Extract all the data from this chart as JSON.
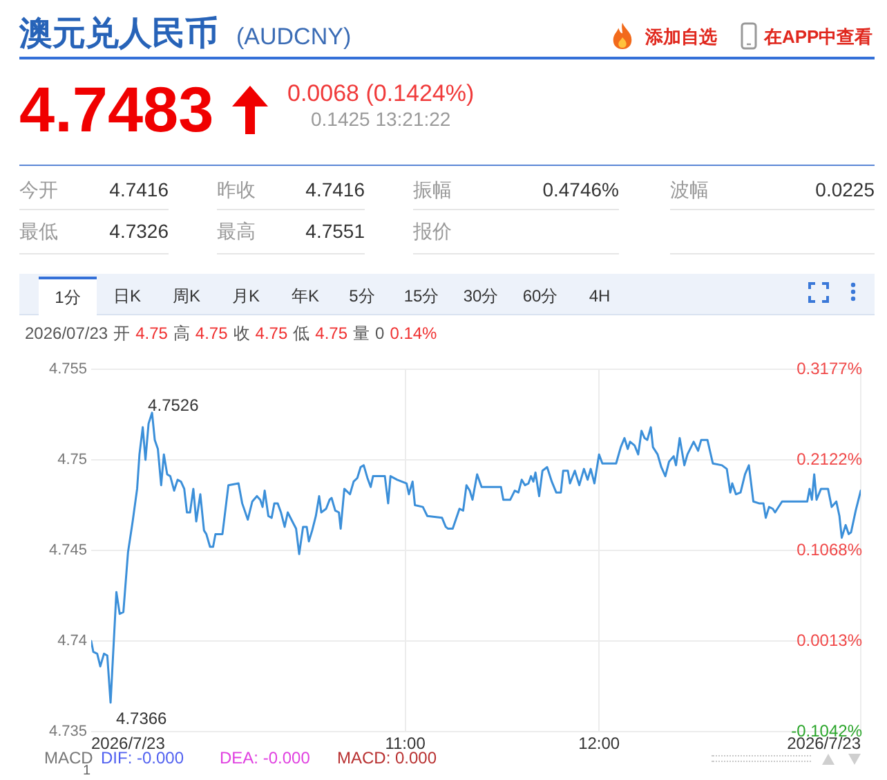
{
  "chart_data": [
    {
      "type": "other",
      "title": "澳元兑人民币",
      "subtitle": "(AUDCNY)",
      "annotations": [
        "添加自选",
        "在APP中查看",
        "4.7483",
        "0.0068 (0.1424%)",
        "0.1425 13:21:22",
        "今开",
        "4.7416",
        "昨收",
        "4.7416",
        "振幅",
        "0.4746%",
        "波幅",
        "0.0225",
        "最低",
        "4.7326",
        "最高",
        "4.7551",
        "报价"
      ]
    },
    {
      "type": "line",
      "color": "#3b8fd9",
      "x": [
        9.38,
        9.391,
        9.411,
        9.427,
        9.446,
        9.463,
        9.48,
        9.51,
        9.527,
        9.546,
        9.57,
        9.594,
        9.617,
        9.629,
        9.646,
        9.66,
        9.676,
        9.694,
        9.708,
        9.724,
        9.741,
        9.755,
        9.772,
        9.788,
        9.808,
        9.826,
        9.843,
        9.86,
        9.874,
        9.89,
        9.907,
        9.922,
        9.943,
        9.962,
        9.974,
        9.993,
        10.009,
        10.021,
        10.057,
        10.088,
        10.14,
        10.159,
        10.188,
        10.211,
        10.235,
        10.252,
        10.264,
        10.275,
        10.294,
        10.311,
        10.325,
        10.342,
        10.359,
        10.378,
        10.394,
        10.413,
        10.437,
        10.453,
        10.473,
        10.492,
        10.503,
        10.52,
        10.539,
        10.556,
        10.567,
        10.592,
        10.61,
        10.62,
        10.639,
        10.658,
        10.667,
        10.686,
        10.715,
        10.734,
        10.753,
        10.77,
        10.786,
        10.805,
        10.822,
        10.834,
        10.895,
        10.912,
        10.924,
        10.959,
        11.007,
        11.019,
        11.038,
        11.05,
        11.091,
        11.114,
        11.19,
        11.209,
        11.221,
        11.245,
        11.28,
        11.299,
        11.316,
        11.333,
        11.347,
        11.371,
        11.394,
        11.494,
        11.506,
        11.542,
        11.565,
        11.584,
        11.601,
        11.618,
        11.636,
        11.649,
        11.661,
        11.672,
        11.691,
        11.708,
        11.732,
        11.756,
        11.779,
        11.803,
        11.815,
        11.839,
        11.85,
        11.875,
        11.898,
        11.922,
        11.941,
        11.957,
        11.976,
        12,
        12.017,
        12.088,
        12.112,
        12.131,
        12.148,
        12.16,
        12.183,
        12.202,
        12.219,
        12.235,
        12.249,
        12.267,
        12.278,
        12.302,
        12.321,
        12.342,
        12.361,
        12.385,
        12.397,
        12.416,
        12.44,
        12.456,
        12.488,
        12.511,
        12.527,
        12.559,
        12.587,
        12.634,
        12.659,
        12.677,
        12.687,
        12.706,
        12.73,
        12.753,
        12.773,
        12.796,
        12.825,
        12.848,
        12.86,
        12.877,
        12.896,
        12.908,
        12.944,
        13.074,
        13.086,
        13.098,
        13.11,
        13.122,
        13.145,
        13.181,
        13.2,
        13.224,
        13.24,
        13.252,
        13.272,
        13.288,
        13.3,
        13.324,
        13.35
      ],
      "values": [
        4.74,
        4.7394,
        4.7393,
        4.7386,
        4.7393,
        4.7392,
        4.7366,
        4.7427,
        4.7415,
        4.7416,
        4.7449,
        4.7466,
        4.7484,
        4.7503,
        4.7518,
        4.75,
        4.752,
        4.7526,
        4.7511,
        4.7506,
        4.7486,
        4.7503,
        4.7492,
        4.7491,
        4.7483,
        4.7489,
        4.7488,
        4.7484,
        4.7471,
        4.7471,
        4.7484,
        4.7466,
        4.7481,
        4.7461,
        4.7459,
        4.7452,
        4.7452,
        4.7459,
        4.7459,
        4.7486,
        4.7487,
        4.7476,
        4.7467,
        4.7477,
        4.748,
        4.7478,
        4.7474,
        4.7483,
        4.7469,
        4.7468,
        4.7476,
        4.7476,
        4.7471,
        4.7463,
        4.7471,
        4.7467,
        4.7462,
        4.7448,
        4.7463,
        4.7463,
        4.7455,
        4.7461,
        4.7469,
        4.748,
        4.7471,
        4.7473,
        4.7478,
        4.7479,
        4.7472,
        4.7471,
        4.7462,
        4.7484,
        4.7481,
        4.7488,
        4.749,
        4.7496,
        4.7497,
        4.749,
        4.7485,
        4.7491,
        4.7491,
        4.7476,
        4.7491,
        4.7489,
        4.7487,
        4.7481,
        4.7488,
        4.7475,
        4.7474,
        4.7469,
        4.7468,
        4.7463,
        4.7462,
        4.7462,
        4.7473,
        4.7472,
        4.7486,
        4.7483,
        4.7478,
        4.7492,
        4.7485,
        4.7485,
        4.7478,
        4.7478,
        4.7483,
        4.7482,
        4.7489,
        4.7486,
        4.7487,
        4.7491,
        4.7488,
        4.7493,
        4.748,
        4.7494,
        4.7496,
        4.7488,
        4.7482,
        4.7482,
        4.7494,
        4.7494,
        4.7487,
        4.7494,
        4.7486,
        4.7495,
        4.7489,
        4.7495,
        4.7487,
        4.7503,
        4.7498,
        4.7498,
        4.7507,
        4.7512,
        4.7506,
        4.751,
        4.7508,
        4.7503,
        4.7516,
        4.7512,
        4.7511,
        4.7518,
        4.7507,
        4.7503,
        4.7496,
        4.7491,
        4.7499,
        4.7502,
        4.7497,
        4.7512,
        4.7497,
        4.7503,
        4.751,
        4.7505,
        4.7511,
        4.7511,
        4.7498,
        4.7497,
        4.7495,
        4.7482,
        4.7487,
        4.7481,
        4.7482,
        4.7492,
        4.7497,
        4.7477,
        4.7476,
        4.7476,
        4.7468,
        4.7474,
        4.7473,
        4.7471,
        4.7477,
        4.7477,
        4.7484,
        4.7478,
        4.7492,
        4.7478,
        4.7484,
        4.7484,
        4.7474,
        4.7477,
        4.7469,
        4.7457,
        4.7464,
        4.7459,
        4.746,
        4.7472,
        4.7483
      ],
      "xlim": [
        9.38,
        13.35
      ],
      "xticks": [
        {
          "value": 9.38,
          "label": "2026/7/23"
        },
        {
          "value": 11,
          "label": "11:00"
        },
        {
          "value": 12,
          "label": "12:00"
        },
        {
          "value": 13.35,
          "label": "2026/7/23"
        }
      ],
      "ylim": [
        4.735,
        4.755
      ],
      "yticks": [
        4.735,
        4.74,
        4.745,
        4.75,
        4.755
      ],
      "y2lim": [
        -0.1042,
        0.3177
      ],
      "y2ticks": [
        {
          "value": -0.1042,
          "label": "-0.1042%"
        },
        {
          "value": 0.0013,
          "label": "0.0013%"
        },
        {
          "value": 0.1068,
          "label": "0.1068%"
        },
        {
          "value": 0.2122,
          "label": "0.2122%"
        },
        {
          "value": 0.3177,
          "label": "0.3177%"
        }
      ],
      "grid": true,
      "annotations": [
        "1分",
        "日K",
        "周K",
        "月K",
        "年K",
        "5分",
        "15分",
        "30分",
        "60分",
        "4H",
        "2026/07/23",
        "开",
        "4.75",
        "高",
        "4.75",
        "收",
        "4.75",
        "低",
        "4.75",
        "量",
        "0",
        "0.14%",
        {
          "text": "4.7526",
          "x": 9.694,
          "y": 4.7526
        },
        {
          "text": "4.7366",
          "x": 9.48,
          "y": 4.7366
        },
        "MACD",
        "DIF: -0.000",
        "DEA: -0.000",
        "MACD: 0.000",
        "1"
      ]
    }
  ]
}
